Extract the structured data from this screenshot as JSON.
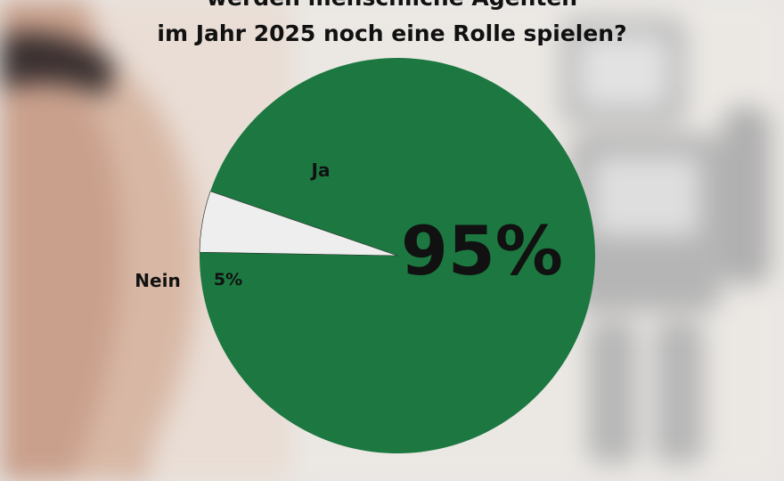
{
  "chart_data": {
    "type": "pie",
    "title_lines": [
      "werden menschliche Agenten",
      "im Jahr 2025 noch eine Rolle spielen?"
    ],
    "slices": [
      {
        "label": "Ja",
        "value": 95,
        "value_label": "95%",
        "color": "#1c7840"
      },
      {
        "label": "Nein",
        "value": 5,
        "value_label": "5%",
        "color": "#eeeeee"
      }
    ],
    "background": "blurred photo of a human hand and a robot figure"
  }
}
